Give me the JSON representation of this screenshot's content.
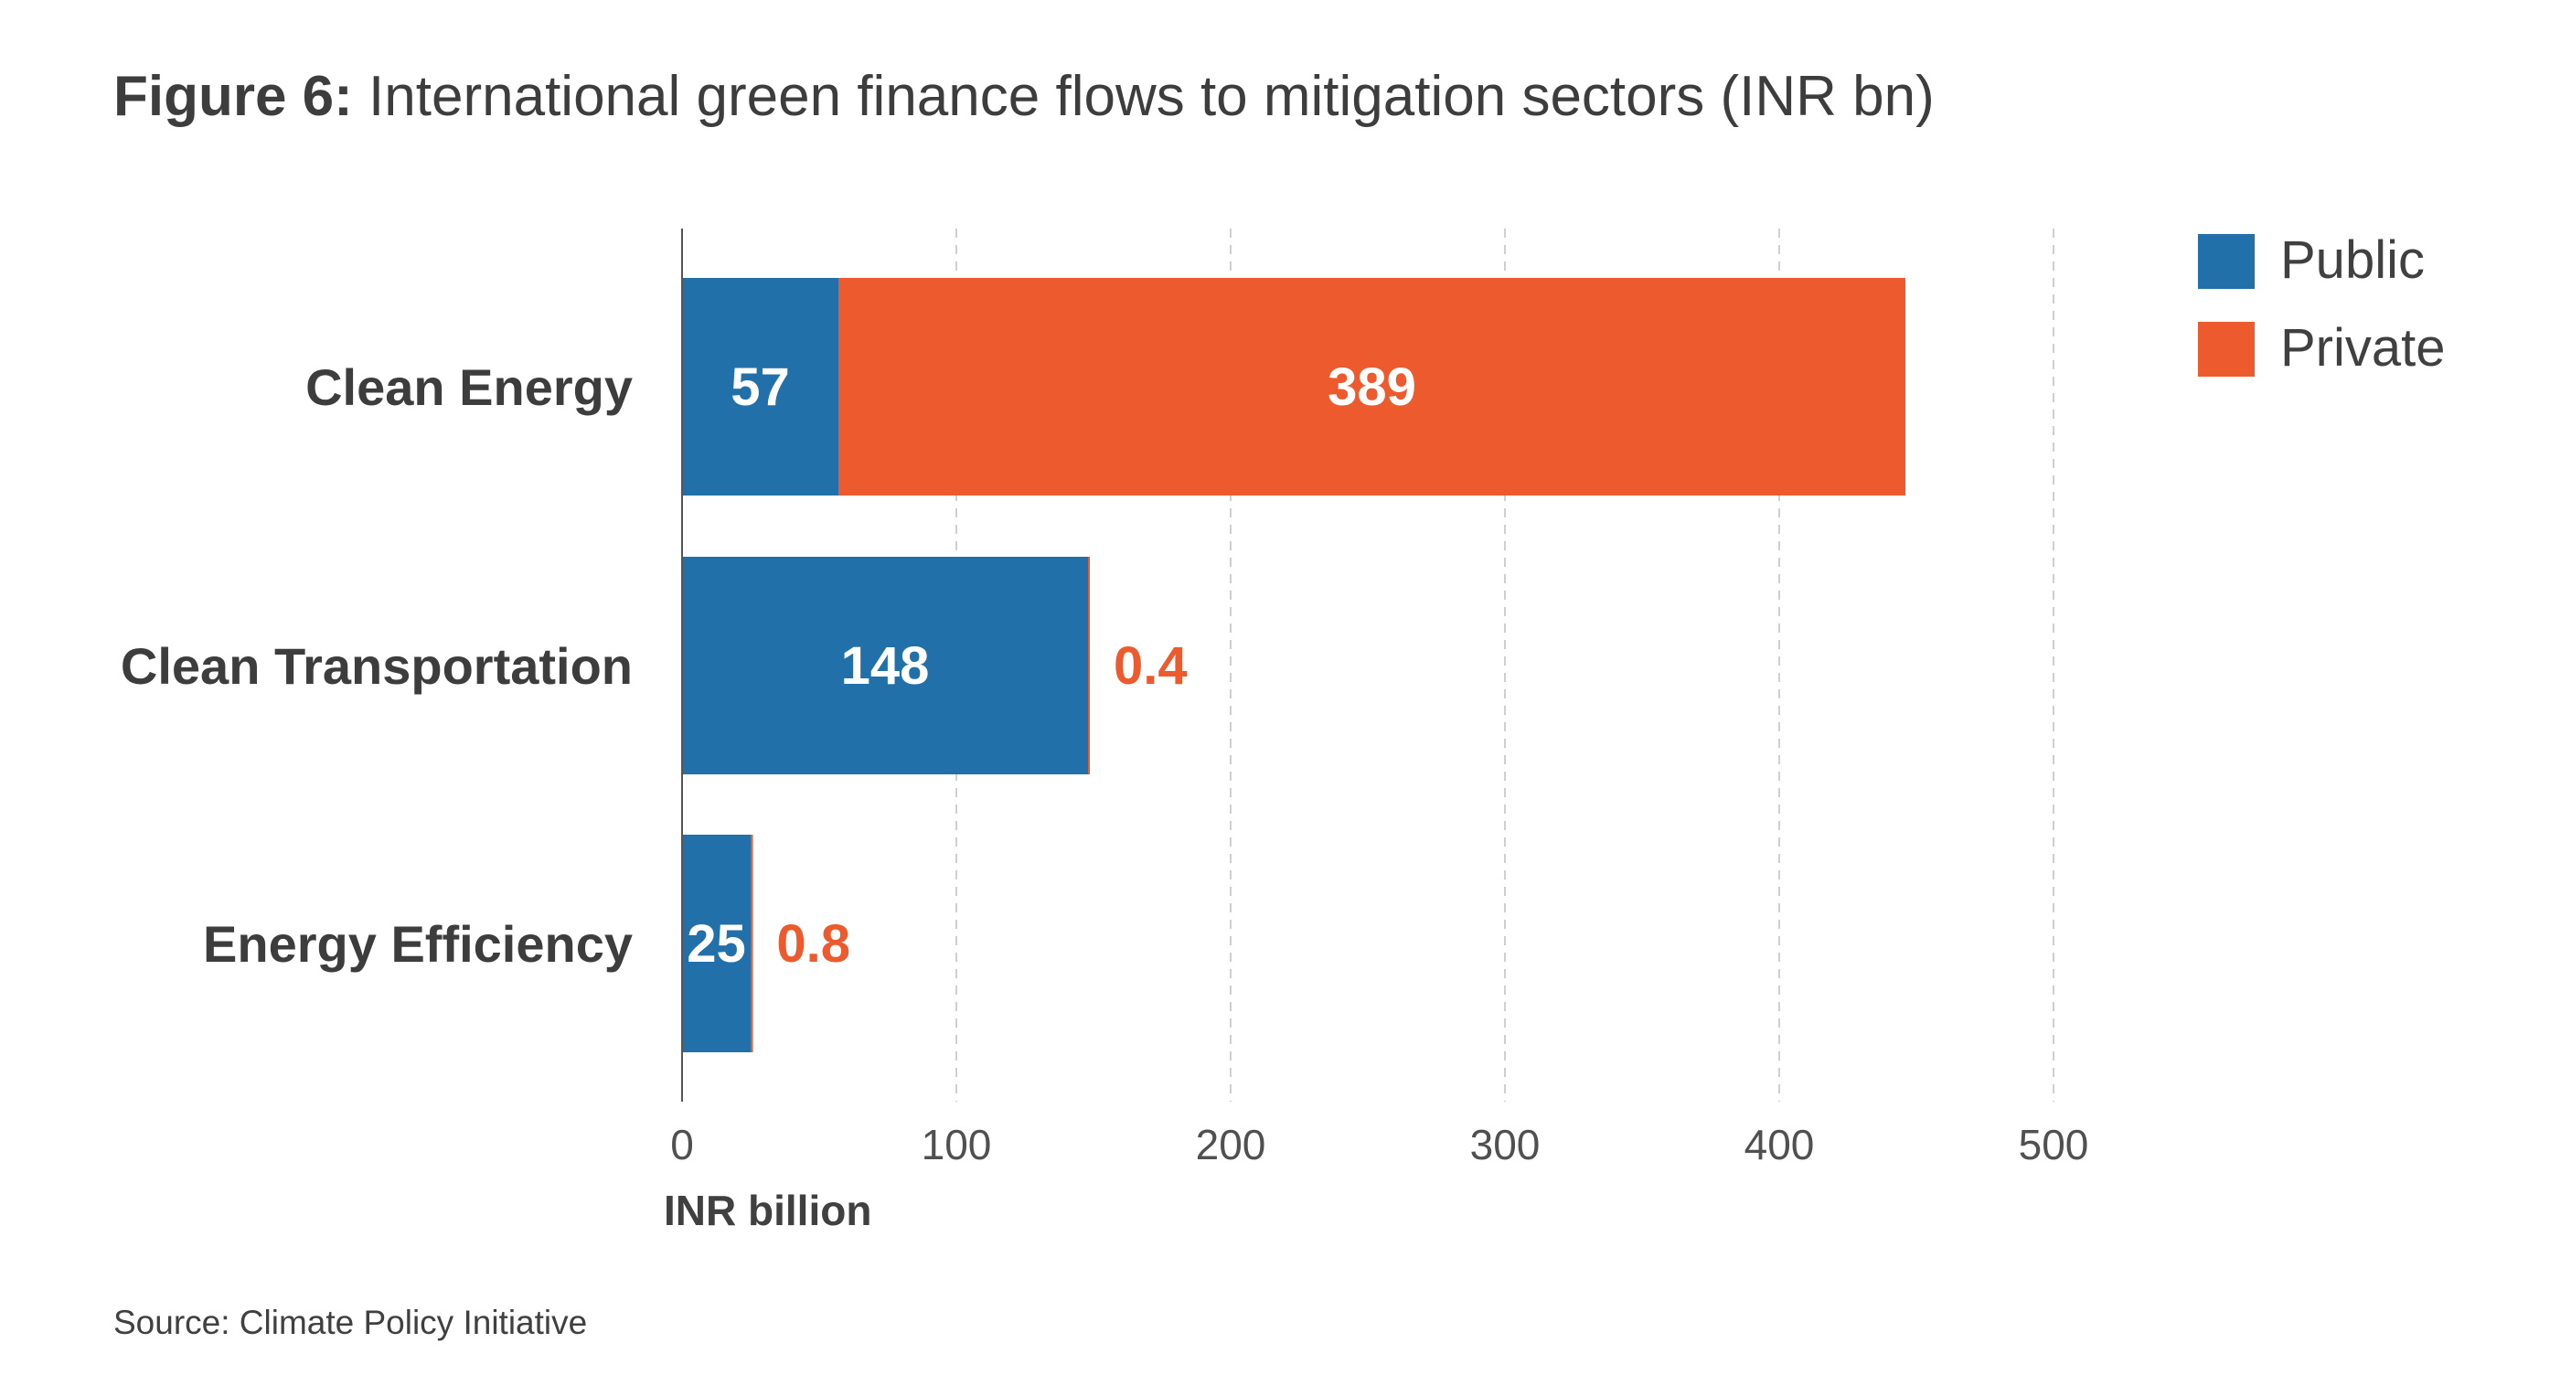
{
  "title": {
    "prefix": "Figure 6:",
    "text": "International green finance flows to mitigation sectors (INR bn)"
  },
  "source": "Source: Climate Policy Initiative",
  "chart_data": {
    "type": "bar",
    "orientation": "horizontal",
    "stacked": true,
    "categories": [
      "Clean Energy",
      "Clean Transportation",
      "Energy Efficiency"
    ],
    "series": [
      {
        "name": "Public",
        "color": "#2270a9",
        "values": [
          57,
          148,
          25
        ]
      },
      {
        "name": "Private",
        "color": "#ec5a2e",
        "values": [
          389,
          0.4,
          0.8
        ]
      }
    ],
    "x_ticks": [
      "0",
      "100",
      "200",
      "300",
      "400",
      "500"
    ],
    "xlim": [
      0,
      500
    ],
    "xlabel": "INR billion",
    "grid": "vertical-dashed",
    "legend_position": "top-right"
  }
}
